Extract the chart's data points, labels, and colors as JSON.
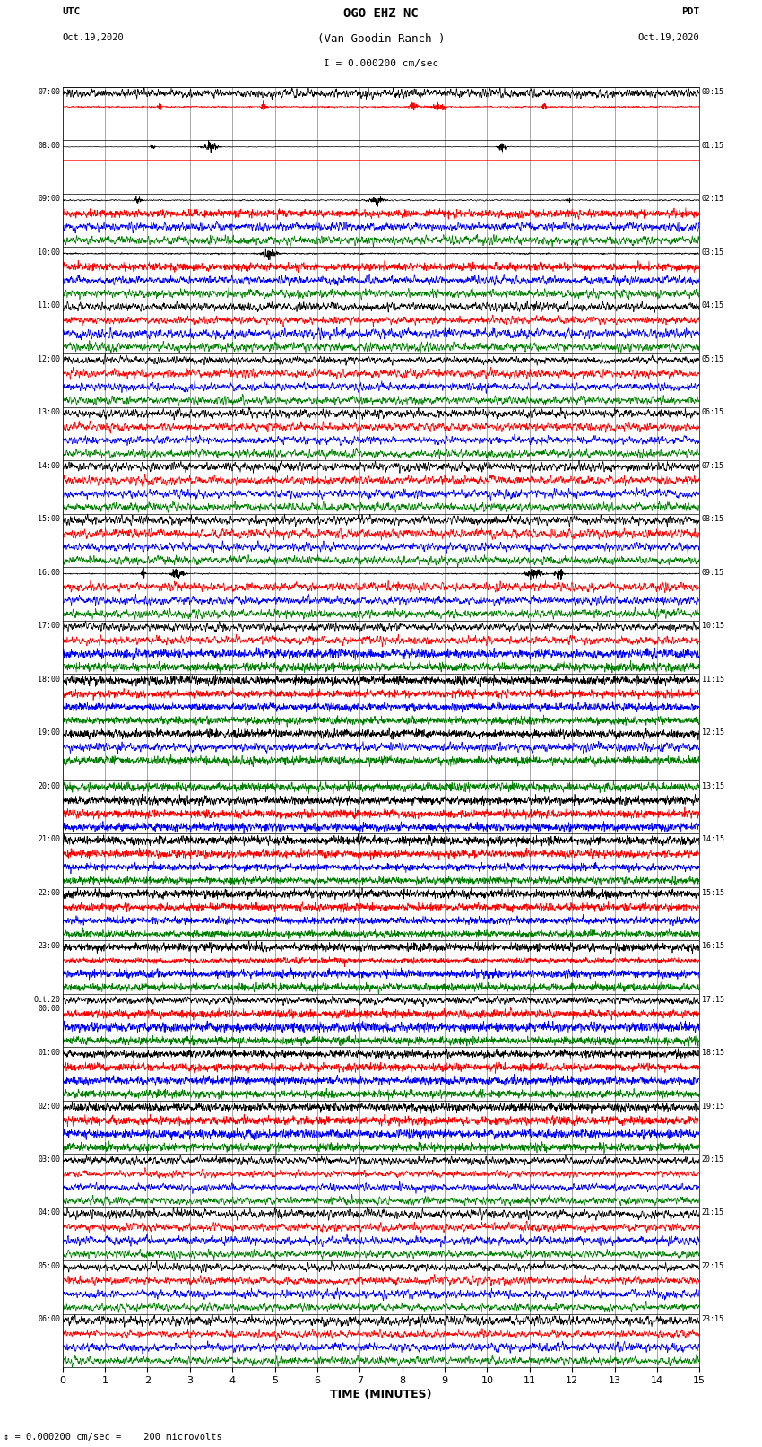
{
  "title_line1": "OGO EHZ NC",
  "title_line2": "(Van Goodin Ranch )",
  "scale_text": "I = 0.000200 cm/sec",
  "footer_text": "= 0.000200 cm/sec =    200 microvolts",
  "utc_label": "UTC",
  "pdt_label": "PDT",
  "date_left": "Oct.19,2020",
  "date_right": "Oct.19,2020",
  "xlabel": "TIME (MINUTES)",
  "xmin": 0,
  "xmax": 15,
  "xticks": [
    0,
    1,
    2,
    3,
    4,
    5,
    6,
    7,
    8,
    9,
    10,
    11,
    12,
    13,
    14,
    15
  ],
  "bg_color": "#ffffff",
  "trace_colors": [
    "black",
    "red",
    "blue",
    "green"
  ],
  "n_minutes": 15,
  "sample_rate": 200,
  "rows": [
    {
      "utc": "07:00",
      "pdt": "00:15",
      "n_traces": 2,
      "amplitudes": [
        0.05,
        2.0,
        0,
        0
      ],
      "trace_colors": [
        "black",
        "red",
        "blue",
        "green"
      ]
    },
    {
      "utc": "08:00",
      "pdt": "01:15",
      "n_traces": 2,
      "amplitudes": [
        0.4,
        0.0,
        0,
        0
      ],
      "trace_colors": [
        "black",
        "red",
        "blue",
        "green"
      ]
    },
    {
      "utc": "09:00",
      "pdt": "02:15",
      "n_traces": 4,
      "amplitudes": [
        0.3,
        1.5,
        0.5,
        0.3
      ],
      "trace_colors": [
        "black",
        "red",
        "blue",
        "green"
      ]
    },
    {
      "utc": "10:00",
      "pdt": "03:15",
      "n_traces": 4,
      "amplitudes": [
        2.0,
        1.5,
        0.4,
        0.5
      ],
      "trace_colors": [
        "black",
        "red",
        "blue",
        "green"
      ]
    },
    {
      "utc": "11:00",
      "pdt": "04:15",
      "n_traces": 4,
      "amplitudes": [
        0.8,
        0.6,
        0.3,
        0.3
      ],
      "trace_colors": [
        "black",
        "red",
        "blue",
        "green"
      ]
    },
    {
      "utc": "12:00",
      "pdt": "05:15",
      "n_traces": 4,
      "amplitudes": [
        0.3,
        0.3,
        0.15,
        0.1
      ],
      "trace_colors": [
        "black",
        "red",
        "blue",
        "green"
      ]
    },
    {
      "utc": "13:00",
      "pdt": "06:15",
      "n_traces": 4,
      "amplitudes": [
        0.3,
        0.4,
        0.3,
        0.4
      ],
      "trace_colors": [
        "black",
        "red",
        "blue",
        "green"
      ]
    },
    {
      "utc": "14:00",
      "pdt": "07:15",
      "n_traces": 4,
      "amplitudes": [
        0.4,
        0.3,
        0.3,
        0.4
      ],
      "trace_colors": [
        "black",
        "red",
        "blue",
        "green"
      ]
    },
    {
      "utc": "15:00",
      "pdt": "08:15",
      "n_traces": 4,
      "amplitudes": [
        0.3,
        0.3,
        0.3,
        0.3
      ],
      "trace_colors": [
        "black",
        "red",
        "blue",
        "green"
      ]
    },
    {
      "utc": "16:00",
      "pdt": "09:15",
      "n_traces": 4,
      "amplitudes": [
        1.5,
        0.3,
        0.2,
        0.3
      ],
      "trace_colors": [
        "black",
        "red",
        "blue",
        "green"
      ]
    },
    {
      "utc": "17:00",
      "pdt": "10:15",
      "n_traces": 4,
      "amplitudes": [
        0.3,
        0.3,
        1.5,
        3.0
      ],
      "trace_colors": [
        "black",
        "red",
        "blue",
        "green"
      ]
    },
    {
      "utc": "18:00",
      "pdt": "11:15",
      "n_traces": 4,
      "amplitudes": [
        3.5,
        4.0,
        3.0,
        2.5
      ],
      "trace_colors": [
        "black",
        "red",
        "blue",
        "green"
      ]
    },
    {
      "utc": "19:00",
      "pdt": "12:15",
      "n_traces": 3,
      "amplitudes": [
        2.0,
        0.5,
        3.0,
        0
      ],
      "trace_colors": [
        "black",
        "blue",
        "green",
        "red"
      ]
    },
    {
      "utc": "20:00",
      "pdt": "13:15",
      "n_traces": 4,
      "amplitudes": [
        4.0,
        4.0,
        3.5,
        4.0
      ],
      "trace_colors": [
        "green",
        "black",
        "red",
        "blue"
      ]
    },
    {
      "utc": "21:00",
      "pdt": "14:15",
      "n_traces": 4,
      "amplitudes": [
        4.5,
        5.0,
        5.0,
        4.5
      ],
      "trace_colors": [
        "black",
        "red",
        "blue",
        "green"
      ]
    },
    {
      "utc": "22:00",
      "pdt": "15:15",
      "n_traces": 4,
      "amplitudes": [
        4.5,
        4.5,
        4.0,
        3.5
      ],
      "trace_colors": [
        "black",
        "red",
        "blue",
        "green"
      ]
    },
    {
      "utc": "23:00",
      "pdt": "16:15",
      "n_traces": 4,
      "amplitudes": [
        3.0,
        3.5,
        2.5,
        2.0
      ],
      "trace_colors": [
        "black",
        "red",
        "blue",
        "green"
      ]
    },
    {
      "utc": "Oct.20\n00:00",
      "pdt": "17:15",
      "n_traces": 4,
      "amplitudes": [
        0.5,
        2.5,
        1.0,
        1.0
      ],
      "trace_colors": [
        "black",
        "red",
        "blue",
        "green"
      ]
    },
    {
      "utc": "01:00",
      "pdt": "18:15",
      "n_traces": 4,
      "amplitudes": [
        2.0,
        3.0,
        2.5,
        2.5
      ],
      "trace_colors": [
        "black",
        "red",
        "blue",
        "green"
      ]
    },
    {
      "utc": "02:00",
      "pdt": "19:15",
      "n_traces": 4,
      "amplitudes": [
        3.5,
        3.5,
        3.0,
        2.5
      ],
      "trace_colors": [
        "black",
        "red",
        "blue",
        "green"
      ]
    },
    {
      "utc": "03:00",
      "pdt": "20:15",
      "n_traces": 4,
      "amplitudes": [
        0.5,
        0.5,
        0.5,
        0.8
      ],
      "trace_colors": [
        "black",
        "red",
        "blue",
        "green"
      ]
    },
    {
      "utc": "04:00",
      "pdt": "21:15",
      "n_traces": 4,
      "amplitudes": [
        0.5,
        0.8,
        0.5,
        0.3
      ],
      "trace_colors": [
        "black",
        "red",
        "blue",
        "green"
      ]
    },
    {
      "utc": "05:00",
      "pdt": "22:15",
      "n_traces": 4,
      "amplitudes": [
        0.5,
        0.5,
        0.3,
        0.3
      ],
      "trace_colors": [
        "black",
        "red",
        "blue",
        "green"
      ]
    },
    {
      "utc": "06:00",
      "pdt": "23:15",
      "n_traces": 4,
      "amplitudes": [
        0.3,
        0.3,
        0.2,
        0.5
      ],
      "trace_colors": [
        "black",
        "red",
        "blue",
        "green"
      ]
    }
  ]
}
